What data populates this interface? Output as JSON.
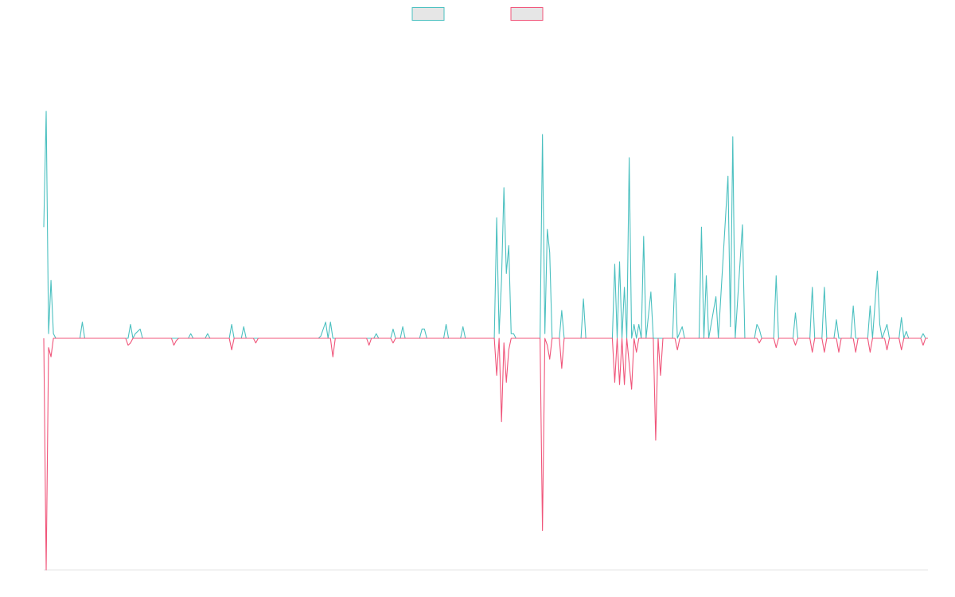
{
  "chart_data": {
    "type": "line",
    "title": "",
    "xlabel": "",
    "ylabel": "",
    "x_count": 368,
    "ylim": [
      -1,
      1.34
    ],
    "grid": false,
    "legend_position": "top-center",
    "baseline_value": 0,
    "series": [
      {
        "name": "",
        "color": "#4bc0c0",
        "fill": "#e6e6e6",
        "points": [
          [
            0,
            0.48
          ],
          [
            1,
            0.98
          ],
          [
            2,
            0.02
          ],
          [
            3,
            0.25
          ],
          [
            4,
            0.02
          ],
          [
            5,
            0.0
          ],
          [
            15,
            0.0
          ],
          [
            16,
            0.07
          ],
          [
            17,
            0.0
          ],
          [
            35,
            0.0
          ],
          [
            36,
            0.06
          ],
          [
            37,
            0.0
          ],
          [
            38,
            0.02
          ],
          [
            40,
            0.04
          ],
          [
            41,
            0.0
          ],
          [
            60,
            0.0
          ],
          [
            61,
            0.02
          ],
          [
            62,
            0.0
          ],
          [
            67,
            0.0
          ],
          [
            68,
            0.02
          ],
          [
            69,
            0.0
          ],
          [
            77,
            0.0
          ],
          [
            78,
            0.06
          ],
          [
            79,
            0.0
          ],
          [
            82,
            0.0
          ],
          [
            83,
            0.05
          ],
          [
            84,
            0.0
          ],
          [
            114,
            0.0
          ],
          [
            115,
            0.01
          ],
          [
            117,
            0.07
          ],
          [
            118,
            0.0
          ],
          [
            119,
            0.07
          ],
          [
            120,
            0.0
          ],
          [
            137,
            0.0
          ],
          [
            138,
            0.02
          ],
          [
            139,
            0.0
          ],
          [
            144,
            0.0
          ],
          [
            145,
            0.04
          ],
          [
            146,
            0.0
          ],
          [
            148,
            0.0
          ],
          [
            149,
            0.05
          ],
          [
            150,
            0.0
          ],
          [
            156,
            0.0
          ],
          [
            157,
            0.04
          ],
          [
            158,
            0.04
          ],
          [
            159,
            0.0
          ],
          [
            166,
            0.0
          ],
          [
            167,
            0.06
          ],
          [
            168,
            0.0
          ],
          [
            173,
            0.0
          ],
          [
            174,
            0.05
          ],
          [
            175,
            0.0
          ],
          [
            187,
            0.0
          ],
          [
            188,
            0.52
          ],
          [
            189,
            0.02
          ],
          [
            190,
            0.25
          ],
          [
            191,
            0.65
          ],
          [
            192,
            0.28
          ],
          [
            193,
            0.4
          ],
          [
            194,
            0.02
          ],
          [
            195,
            0.02
          ],
          [
            196,
            0.0
          ],
          [
            206,
            0.0
          ],
          [
            207,
            0.88
          ],
          [
            208,
            0.02
          ],
          [
            209,
            0.47
          ],
          [
            210,
            0.37
          ],
          [
            211,
            0.0
          ],
          [
            214,
            0.0
          ],
          [
            215,
            0.12
          ],
          [
            216,
            0.0
          ],
          [
            223,
            0.0
          ],
          [
            224,
            0.17
          ],
          [
            225,
            0.0
          ],
          [
            236,
            0.0
          ],
          [
            237,
            0.32
          ],
          [
            238,
            0.0
          ],
          [
            239,
            0.33
          ],
          [
            240,
            0.0
          ],
          [
            241,
            0.22
          ],
          [
            242,
            0.0
          ],
          [
            243,
            0.78
          ],
          [
            244,
            0.0
          ],
          [
            245,
            0.06
          ],
          [
            246,
            0.0
          ],
          [
            247,
            0.06
          ],
          [
            248,
            0.0
          ],
          [
            249,
            0.44
          ],
          [
            250,
            0.0
          ],
          [
            252,
            0.2
          ],
          [
            253,
            0.0
          ],
          [
            261,
            0.0
          ],
          [
            262,
            0.28
          ],
          [
            263,
            0.0
          ],
          [
            265,
            0.05
          ],
          [
            266,
            0.0
          ],
          [
            272,
            0.0
          ],
          [
            273,
            0.48
          ],
          [
            274,
            0.0
          ],
          [
            275,
            0.27
          ],
          [
            276,
            0.0
          ],
          [
            279,
            0.18
          ],
          [
            280,
            0.0
          ],
          [
            284,
            0.7
          ],
          [
            285,
            0.05
          ],
          [
            286,
            0.87
          ],
          [
            287,
            0.0
          ],
          [
            290,
            0.49
          ],
          [
            291,
            0.0
          ],
          [
            295,
            0.0
          ],
          [
            296,
            0.06
          ],
          [
            297,
            0.04
          ],
          [
            298,
            0.0
          ],
          [
            303,
            0.0
          ],
          [
            304,
            0.27
          ],
          [
            305,
            0.0
          ],
          [
            311,
            0.0
          ],
          [
            312,
            0.11
          ],
          [
            313,
            0.0
          ],
          [
            318,
            0.0
          ],
          [
            319,
            0.22
          ],
          [
            320,
            0.0
          ],
          [
            323,
            0.0
          ],
          [
            324,
            0.22
          ],
          [
            325,
            0.0
          ],
          [
            328,
            0.0
          ],
          [
            329,
            0.08
          ],
          [
            330,
            0.0
          ],
          [
            335,
            0.0
          ],
          [
            336,
            0.14
          ],
          [
            337,
            0.0
          ],
          [
            342,
            0.0
          ],
          [
            343,
            0.14
          ],
          [
            344,
            0.0
          ],
          [
            346,
            0.29
          ],
          [
            347,
            0.06
          ],
          [
            348,
            0.0
          ],
          [
            350,
            0.06
          ],
          [
            351,
            0.0
          ],
          [
            355,
            0.0
          ],
          [
            356,
            0.09
          ],
          [
            357,
            0.0
          ],
          [
            358,
            0.03
          ],
          [
            359,
            0.0
          ],
          [
            364,
            0.0
          ],
          [
            365,
            0.02
          ],
          [
            366,
            0.0
          ],
          [
            367,
            0.0
          ]
        ]
      },
      {
        "name": "",
        "color": "#f0557a",
        "fill": "#e6e6e6",
        "points": [
          [
            0,
            0.0
          ],
          [
            1,
            -1.0
          ],
          [
            2,
            -0.04
          ],
          [
            3,
            -0.08
          ],
          [
            4,
            0.0
          ],
          [
            34,
            0.0
          ],
          [
            35,
            -0.03
          ],
          [
            36,
            -0.02
          ],
          [
            37,
            0.0
          ],
          [
            53,
            0.0
          ],
          [
            54,
            -0.03
          ],
          [
            55,
            -0.01
          ],
          [
            56,
            0.0
          ],
          [
            77,
            0.0
          ],
          [
            78,
            -0.05
          ],
          [
            79,
            0.0
          ],
          [
            87,
            0.0
          ],
          [
            88,
            -0.02
          ],
          [
            89,
            0.0
          ],
          [
            119,
            0.0
          ],
          [
            120,
            -0.08
          ],
          [
            121,
            0.0
          ],
          [
            134,
            0.0
          ],
          [
            135,
            -0.03
          ],
          [
            136,
            0.0
          ],
          [
            144,
            0.0
          ],
          [
            145,
            -0.02
          ],
          [
            146,
            0.0
          ],
          [
            187,
            0.0
          ],
          [
            188,
            -0.16
          ],
          [
            189,
            0.0
          ],
          [
            190,
            -0.36
          ],
          [
            191,
            -0.02
          ],
          [
            192,
            -0.19
          ],
          [
            193,
            -0.05
          ],
          [
            194,
            0.0
          ],
          [
            206,
            0.0
          ],
          [
            207,
            -0.83
          ],
          [
            208,
            0.0
          ],
          [
            209,
            -0.03
          ],
          [
            210,
            -0.09
          ],
          [
            211,
            0.0
          ],
          [
            214,
            0.0
          ],
          [
            215,
            -0.13
          ],
          [
            216,
            0.0
          ],
          [
            236,
            0.0
          ],
          [
            237,
            -0.19
          ],
          [
            238,
            0.0
          ],
          [
            239,
            -0.2
          ],
          [
            240,
            0.0
          ],
          [
            241,
            -0.2
          ],
          [
            242,
            0.0
          ],
          [
            244,
            -0.22
          ],
          [
            245,
            0.0
          ],
          [
            246,
            -0.06
          ],
          [
            247,
            0.0
          ],
          [
            253,
            0.0
          ],
          [
            254,
            -0.44
          ],
          [
            255,
            0.0
          ],
          [
            256,
            -0.16
          ],
          [
            257,
            0.0
          ],
          [
            262,
            0.0
          ],
          [
            263,
            -0.05
          ],
          [
            264,
            0.0
          ],
          [
            296,
            0.0
          ],
          [
            297,
            -0.02
          ],
          [
            298,
            0.0
          ],
          [
            303,
            0.0
          ],
          [
            304,
            -0.04
          ],
          [
            305,
            0.0
          ],
          [
            311,
            0.0
          ],
          [
            312,
            -0.03
          ],
          [
            313,
            0.0
          ],
          [
            318,
            0.0
          ],
          [
            319,
            -0.06
          ],
          [
            320,
            0.0
          ],
          [
            323,
            0.0
          ],
          [
            324,
            -0.06
          ],
          [
            325,
            0.0
          ],
          [
            329,
            0.0
          ],
          [
            330,
            -0.06
          ],
          [
            331,
            0.0
          ],
          [
            336,
            0.0
          ],
          [
            337,
            -0.06
          ],
          [
            338,
            0.0
          ],
          [
            342,
            0.0
          ],
          [
            343,
            -0.06
          ],
          [
            344,
            0.0
          ],
          [
            349,
            0.0
          ],
          [
            350,
            -0.05
          ],
          [
            351,
            0.0
          ],
          [
            355,
            0.0
          ],
          [
            356,
            -0.05
          ],
          [
            357,
            0.0
          ],
          [
            364,
            0.0
          ],
          [
            365,
            -0.03
          ],
          [
            366,
            0.0
          ],
          [
            367,
            0.0
          ]
        ]
      }
    ]
  }
}
